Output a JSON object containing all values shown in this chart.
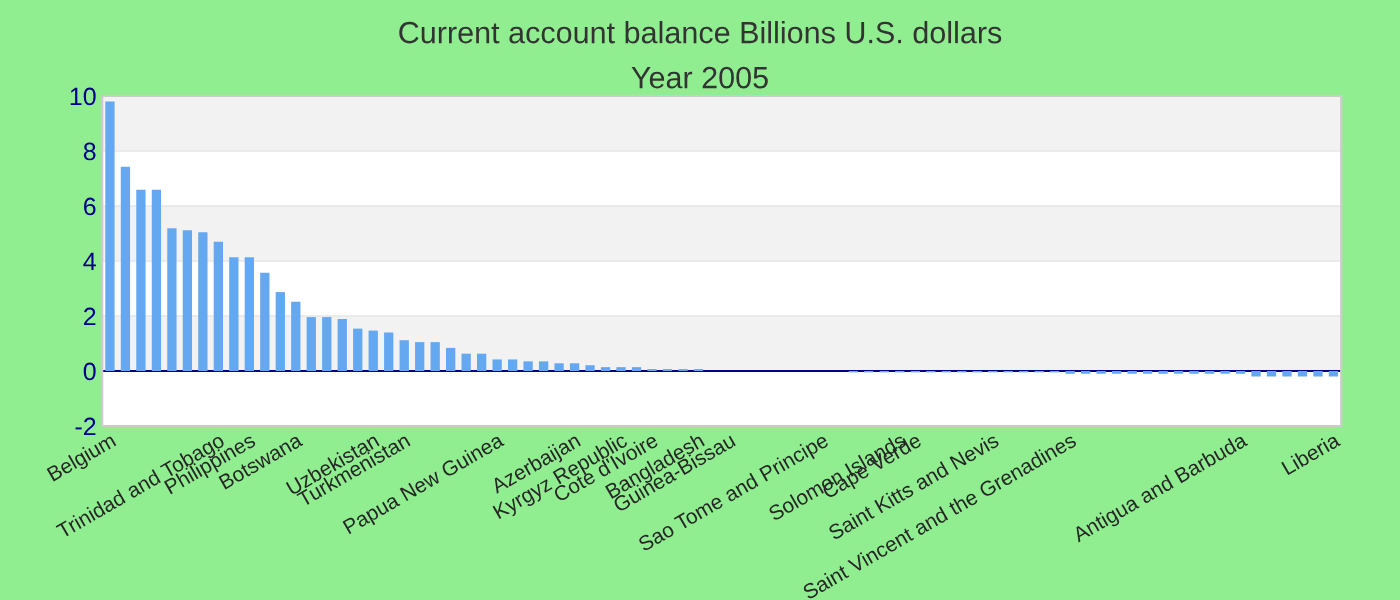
{
  "chart_data": {
    "type": "bar",
    "title": "Current account balance Billions U.S. dollars",
    "subtitle": "Year 2005",
    "categories": [
      "Belgium",
      null,
      null,
      null,
      null,
      null,
      null,
      "Trinidad and Tobago",
      null,
      "Philippines",
      null,
      null,
      "Botswana",
      null,
      null,
      null,
      null,
      "Uzbekistan",
      null,
      "Turkmenistan",
      null,
      null,
      null,
      null,
      null,
      "Papua New Guinea",
      null,
      null,
      null,
      null,
      "Azerbaijan",
      null,
      null,
      "Kyrgyz Republic",
      null,
      "Cote d'Ivoire",
      null,
      null,
      "Bangladesh",
      null,
      "Guinea-Bissau",
      null,
      null,
      null,
      null,
      null,
      "Sao Tome and Principe",
      null,
      null,
      null,
      null,
      "Solomon Islands",
      "Cape Verde",
      null,
      null,
      null,
      null,
      "Saint Kitts and Nevis",
      null,
      null,
      null,
      null,
      "Saint Vincent and the Grenadines",
      null,
      null,
      null,
      null,
      null,
      null,
      null,
      null,
      null,
      null,
      "Antigua and Barbuda",
      null,
      null,
      null,
      null,
      null,
      "Liberia"
    ],
    "values": [
      9.8,
      7.43,
      6.59,
      6.59,
      5.19,
      5.12,
      5.05,
      4.7,
      4.14,
      4.14,
      3.57,
      2.87,
      2.52,
      1.96,
      1.96,
      1.89,
      1.54,
      1.47,
      1.4,
      1.12,
      1.05,
      1.05,
      0.84,
      0.63,
      0.63,
      0.42,
      0.42,
      0.35,
      0.35,
      0.28,
      0.28,
      0.21,
      0.14,
      0.14,
      0.14,
      0.07,
      0.07,
      0.07,
      0.07,
      0,
      0,
      0,
      0,
      0,
      0,
      0,
      0,
      0,
      -0.05,
      -0.05,
      -0.05,
      -0.05,
      -0.05,
      -0.05,
      -0.05,
      -0.05,
      -0.05,
      -0.05,
      -0.05,
      -0.05,
      -0.05,
      -0.05,
      -0.1,
      -0.1,
      -0.1,
      -0.1,
      -0.1,
      -0.1,
      -0.1,
      -0.1,
      -0.1,
      -0.1,
      -0.1,
      -0.1,
      -0.2,
      -0.2,
      -0.2,
      -0.2,
      -0.2,
      -0.2
    ],
    "color": "#63a8f0",
    "ylim": [
      -2,
      10
    ],
    "yticks": [
      -2,
      0,
      2,
      4,
      6,
      8,
      10
    ],
    "grid": "y",
    "ref_lines": [
      {
        "axis": "y",
        "value": 0,
        "color": "#00008b"
      }
    ]
  }
}
